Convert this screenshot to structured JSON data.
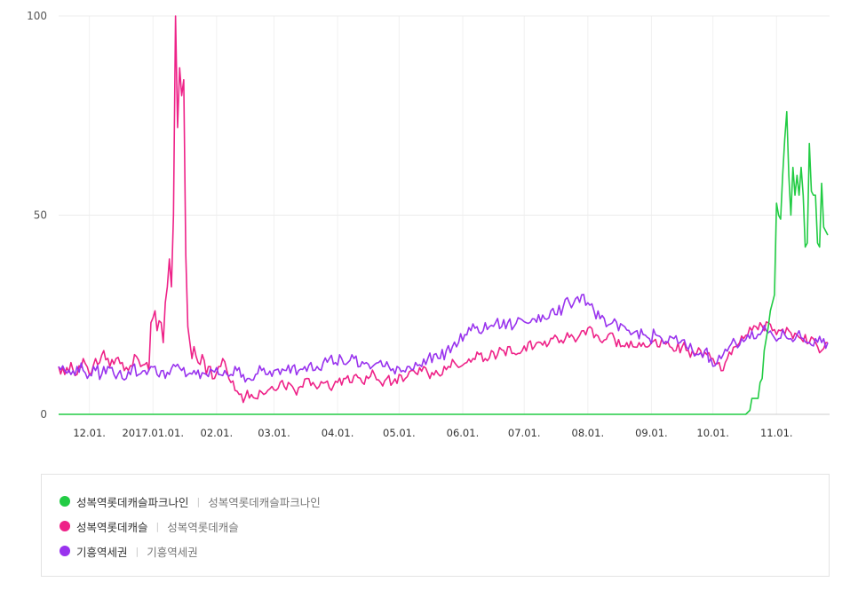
{
  "chart_data": {
    "type": "line",
    "ylim": [
      0,
      100
    ],
    "yticks": [
      0,
      50,
      100
    ],
    "x_tick_labels": [
      "12.01.",
      "2017.01.01.",
      "02.01.",
      "03.01.",
      "04.01.",
      "05.01.",
      "06.01.",
      "07.01.",
      "08.01.",
      "09.01.",
      "10.01.",
      "11.01."
    ],
    "x_tick_index": [
      15,
      46,
      77,
      105,
      136,
      166,
      197,
      227,
      258,
      289,
      319,
      350
    ],
    "x_count": 376,
    "grid": true,
    "legend_position": "bottom",
    "series": [
      {
        "name": "성복역롯데캐슬파크나인",
        "keywords": "성복역롯데캐슬파크나인",
        "color": "#22cc44",
        "anchors": [
          [
            0,
            0
          ],
          [
            335,
            0
          ],
          [
            337,
            1
          ],
          [
            338,
            4
          ],
          [
            341,
            4
          ],
          [
            342,
            8
          ],
          [
            343,
            9
          ],
          [
            344,
            16
          ],
          [
            346,
            22
          ],
          [
            347,
            26
          ],
          [
            348,
            28
          ],
          [
            349,
            30
          ],
          [
            350,
            53
          ],
          [
            351,
            50
          ],
          [
            352,
            49
          ],
          [
            353,
            60
          ],
          [
            354,
            69
          ],
          [
            355,
            76
          ],
          [
            356,
            60
          ],
          [
            357,
            50
          ],
          [
            358,
            62
          ],
          [
            359,
            55
          ],
          [
            360,
            60
          ],
          [
            361,
            55
          ],
          [
            362,
            62
          ],
          [
            363,
            55
          ],
          [
            364,
            42
          ],
          [
            365,
            43
          ],
          [
            366,
            68
          ],
          [
            367,
            56
          ],
          [
            368,
            55
          ],
          [
            369,
            55
          ],
          [
            370,
            43
          ],
          [
            371,
            42
          ],
          [
            372,
            58
          ],
          [
            373,
            47
          ],
          [
            374,
            46
          ],
          [
            375,
            45
          ]
        ]
      },
      {
        "name": "성복역롯데캐슬",
        "keywords": "성복역롯데캐슬",
        "color": "#ee2288",
        "anchors": [
          [
            0,
            12
          ],
          [
            3,
            10
          ],
          [
            6,
            13
          ],
          [
            9,
            10
          ],
          [
            12,
            14
          ],
          [
            15,
            10
          ],
          [
            18,
            14
          ],
          [
            20,
            13
          ],
          [
            22,
            16
          ],
          [
            25,
            12
          ],
          [
            28,
            14
          ],
          [
            31,
            13
          ],
          [
            34,
            11
          ],
          [
            37,
            15
          ],
          [
            40,
            12
          ],
          [
            43,
            13
          ],
          [
            44,
            11
          ],
          [
            45,
            23
          ],
          [
            47,
            26
          ],
          [
            48,
            21
          ],
          [
            50,
            23
          ],
          [
            51,
            18
          ],
          [
            52,
            28
          ],
          [
            53,
            32
          ],
          [
            54,
            39
          ],
          [
            55,
            32
          ],
          [
            56,
            50
          ],
          [
            57,
            100
          ],
          [
            58,
            72
          ],
          [
            59,
            87
          ],
          [
            60,
            80
          ],
          [
            61,
            84
          ],
          [
            62,
            40
          ],
          [
            63,
            22
          ],
          [
            64,
            18
          ],
          [
            65,
            14
          ],
          [
            66,
            17
          ],
          [
            68,
            13
          ],
          [
            70,
            15
          ],
          [
            72,
            10
          ],
          [
            74,
            12
          ],
          [
            76,
            9
          ],
          [
            78,
            12
          ],
          [
            80,
            14
          ],
          [
            82,
            11
          ],
          [
            84,
            8
          ],
          [
            86,
            6
          ],
          [
            88,
            5
          ],
          [
            90,
            3
          ],
          [
            92,
            6
          ],
          [
            94,
            5
          ],
          [
            96,
            4
          ],
          [
            98,
            6
          ],
          [
            100,
            5
          ],
          [
            102,
            6
          ],
          [
            104,
            7
          ],
          [
            106,
            6
          ],
          [
            108,
            8
          ],
          [
            110,
            7
          ],
          [
            112,
            8
          ],
          [
            115,
            6
          ],
          [
            118,
            7
          ],
          [
            121,
            9
          ],
          [
            124,
            8
          ],
          [
            127,
            7
          ],
          [
            130,
            8
          ],
          [
            133,
            6
          ],
          [
            136,
            8
          ],
          [
            139,
            9
          ],
          [
            142,
            8
          ],
          [
            145,
            10
          ],
          [
            148,
            8
          ],
          [
            151,
            9
          ],
          [
            154,
            10
          ],
          [
            157,
            8
          ],
          [
            160,
            9
          ],
          [
            163,
            8
          ],
          [
            166,
            10
          ],
          [
            169,
            9
          ],
          [
            172,
            11
          ],
          [
            175,
            10
          ],
          [
            178,
            12
          ],
          [
            181,
            9
          ],
          [
            184,
            11
          ],
          [
            187,
            10
          ],
          [
            190,
            12
          ],
          [
            193,
            13
          ],
          [
            196,
            12
          ],
          [
            199,
            13
          ],
          [
            202,
            14
          ],
          [
            205,
            15
          ],
          [
            208,
            14
          ],
          [
            211,
            16
          ],
          [
            214,
            15
          ],
          [
            217,
            16
          ],
          [
            220,
            17
          ],
          [
            223,
            15
          ],
          [
            226,
            16
          ],
          [
            229,
            18
          ],
          [
            232,
            17
          ],
          [
            235,
            18
          ],
          [
            238,
            17
          ],
          [
            241,
            19
          ],
          [
            244,
            18
          ],
          [
            247,
            19
          ],
          [
            250,
            20
          ],
          [
            253,
            19
          ],
          [
            256,
            21
          ],
          [
            259,
            22
          ],
          [
            262,
            20
          ],
          [
            265,
            18
          ],
          [
            268,
            20
          ],
          [
            271,
            19
          ],
          [
            274,
            17
          ],
          [
            277,
            18
          ],
          [
            280,
            17
          ],
          [
            283,
            18
          ],
          [
            286,
            17
          ],
          [
            289,
            18
          ],
          [
            292,
            17
          ],
          [
            295,
            18
          ],
          [
            298,
            17
          ],
          [
            301,
            16
          ],
          [
            304,
            17
          ],
          [
            307,
            16
          ],
          [
            310,
            15
          ],
          [
            313,
            16
          ],
          [
            316,
            15
          ],
          [
            319,
            14
          ],
          [
            322,
            13
          ],
          [
            324,
            11
          ],
          [
            326,
            14
          ],
          [
            328,
            15
          ],
          [
            330,
            17
          ],
          [
            332,
            18
          ],
          [
            334,
            19
          ],
          [
            336,
            20
          ],
          [
            338,
            21
          ],
          [
            340,
            22
          ],
          [
            342,
            23
          ],
          [
            344,
            21
          ],
          [
            346,
            23
          ],
          [
            348,
            21
          ],
          [
            350,
            20
          ],
          [
            352,
            21
          ],
          [
            354,
            20
          ],
          [
            356,
            21
          ],
          [
            358,
            19
          ],
          [
            360,
            20
          ],
          [
            362,
            19
          ],
          [
            364,
            20
          ],
          [
            366,
            18
          ],
          [
            368,
            19
          ],
          [
            370,
            17
          ],
          [
            372,
            16
          ],
          [
            374,
            18
          ],
          [
            375,
            18
          ]
        ]
      },
      {
        "name": "기흥역세권",
        "keywords": "기흥역세권",
        "color": "#9933ee",
        "anchors": [
          [
            0,
            12
          ],
          [
            3,
            11
          ],
          [
            6,
            10
          ],
          [
            9,
            12
          ],
          [
            12,
            11
          ],
          [
            15,
            10
          ],
          [
            18,
            11
          ],
          [
            21,
            10
          ],
          [
            24,
            12
          ],
          [
            27,
            10
          ],
          [
            30,
            11
          ],
          [
            33,
            9
          ],
          [
            36,
            12
          ],
          [
            39,
            10
          ],
          [
            42,
            11
          ],
          [
            45,
            12
          ],
          [
            48,
            10
          ],
          [
            51,
            11
          ],
          [
            54,
            10
          ],
          [
            57,
            12
          ],
          [
            60,
            11
          ],
          [
            63,
            10
          ],
          [
            66,
            11
          ],
          [
            69,
            9
          ],
          [
            72,
            10
          ],
          [
            75,
            11
          ],
          [
            78,
            10
          ],
          [
            81,
            11
          ],
          [
            84,
            10
          ],
          [
            87,
            11
          ],
          [
            90,
            10
          ],
          [
            93,
            9
          ],
          [
            96,
            10
          ],
          [
            99,
            11
          ],
          [
            102,
            10
          ],
          [
            105,
            11
          ],
          [
            108,
            10
          ],
          [
            111,
            11
          ],
          [
            114,
            12
          ],
          [
            117,
            11
          ],
          [
            120,
            12
          ],
          [
            123,
            13
          ],
          [
            126,
            12
          ],
          [
            129,
            13
          ],
          [
            132,
            14
          ],
          [
            135,
            13
          ],
          [
            138,
            14
          ],
          [
            141,
            13
          ],
          [
            144,
            14
          ],
          [
            147,
            12
          ],
          [
            150,
            13
          ],
          [
            153,
            12
          ],
          [
            156,
            13
          ],
          [
            159,
            12
          ],
          [
            162,
            11
          ],
          [
            165,
            12
          ],
          [
            168,
            11
          ],
          [
            171,
            12
          ],
          [
            174,
            13
          ],
          [
            177,
            12
          ],
          [
            180,
            14
          ],
          [
            183,
            15
          ],
          [
            186,
            14
          ],
          [
            189,
            16
          ],
          [
            192,
            17
          ],
          [
            195,
            18
          ],
          [
            198,
            20
          ],
          [
            201,
            21
          ],
          [
            204,
            22
          ],
          [
            207,
            21
          ],
          [
            210,
            22
          ],
          [
            213,
            23
          ],
          [
            216,
            22
          ],
          [
            219,
            23
          ],
          [
            222,
            22
          ],
          [
            225,
            24
          ],
          [
            228,
            23
          ],
          [
            231,
            24
          ],
          [
            234,
            25
          ],
          [
            237,
            24
          ],
          [
            240,
            26
          ],
          [
            243,
            25
          ],
          [
            246,
            27
          ],
          [
            249,
            28
          ],
          [
            252,
            29
          ],
          [
            255,
            30
          ],
          [
            258,
            28
          ],
          [
            261,
            26
          ],
          [
            264,
            24
          ],
          [
            267,
            22
          ],
          [
            270,
            23
          ],
          [
            273,
            21
          ],
          [
            276,
            22
          ],
          [
            279,
            20
          ],
          [
            282,
            21
          ],
          [
            285,
            20
          ],
          [
            288,
            19
          ],
          [
            291,
            20
          ],
          [
            294,
            19
          ],
          [
            297,
            18
          ],
          [
            300,
            19
          ],
          [
            303,
            18
          ],
          [
            306,
            17
          ],
          [
            309,
            16
          ],
          [
            312,
            15
          ],
          [
            315,
            16
          ],
          [
            318,
            14
          ],
          [
            321,
            13
          ],
          [
            324,
            15
          ],
          [
            327,
            17
          ],
          [
            330,
            18
          ],
          [
            333,
            19
          ],
          [
            336,
            20
          ],
          [
            339,
            19
          ],
          [
            342,
            20
          ],
          [
            345,
            21
          ],
          [
            348,
            20
          ],
          [
            351,
            19
          ],
          [
            354,
            20
          ],
          [
            357,
            19
          ],
          [
            360,
            20
          ],
          [
            363,
            19
          ],
          [
            366,
            18
          ],
          [
            369,
            19
          ],
          [
            372,
            18
          ],
          [
            375,
            18
          ]
        ]
      }
    ]
  }
}
